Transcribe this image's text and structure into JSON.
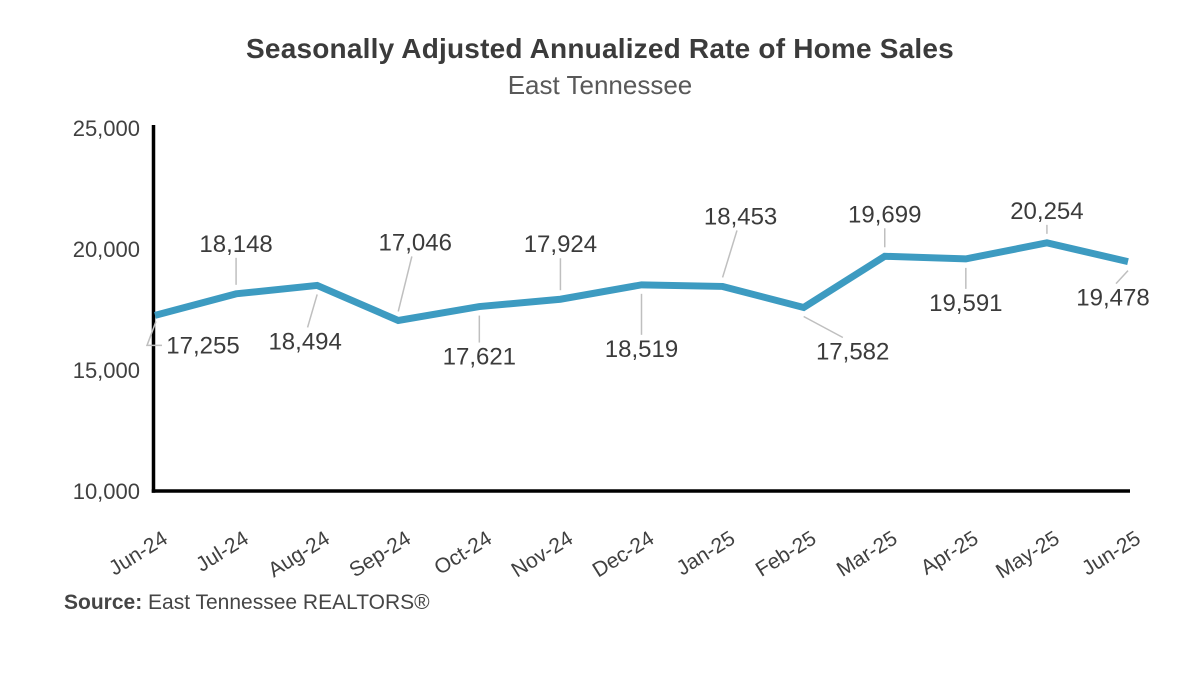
{
  "chart_data": {
    "type": "line",
    "title": "Seasonally Adjusted Annualized Rate of Home Sales",
    "subtitle": "East Tennessee",
    "categories": [
      "Jun-24",
      "Jul-24",
      "Aug-24",
      "Sep-24",
      "Oct-24",
      "Nov-24",
      "Dec-24",
      "Jan-25",
      "Feb-25",
      "Mar-25",
      "Apr-25",
      "May-25",
      "Jun-25"
    ],
    "series": [
      {
        "name": "Seasonally adjusted annualized rate of home sales",
        "values": [
          17255,
          18148,
          18494,
          17046,
          17621,
          17924,
          18519,
          18453,
          17582,
          19699,
          19591,
          20254,
          19478
        ]
      }
    ],
    "data_labels": [
      "17,255",
      "18,148",
      "18,494",
      "17,046",
      "17,621",
      "17,924",
      "18,519",
      "18,453",
      "17,582",
      "19,699",
      "19,591",
      "20,254",
      "19,478"
    ],
    "xlabel": "",
    "ylabel": "",
    "ylim": [
      10000,
      25000
    ],
    "ytick_interval": 5000,
    "ytick_labels": [
      "10,000",
      "15,000",
      "20,000",
      "25,000"
    ],
    "grid": "off",
    "legend": "none",
    "data_labels_shown": true,
    "colors": {
      "line": "#3d9bc1",
      "axis": "#000000",
      "tick_text": "#404040",
      "label_text": "#3b3b3b",
      "leader_line": "#bfbfbf"
    }
  },
  "source": {
    "label": "Source:",
    "text": " East Tennessee REALTORS®"
  }
}
